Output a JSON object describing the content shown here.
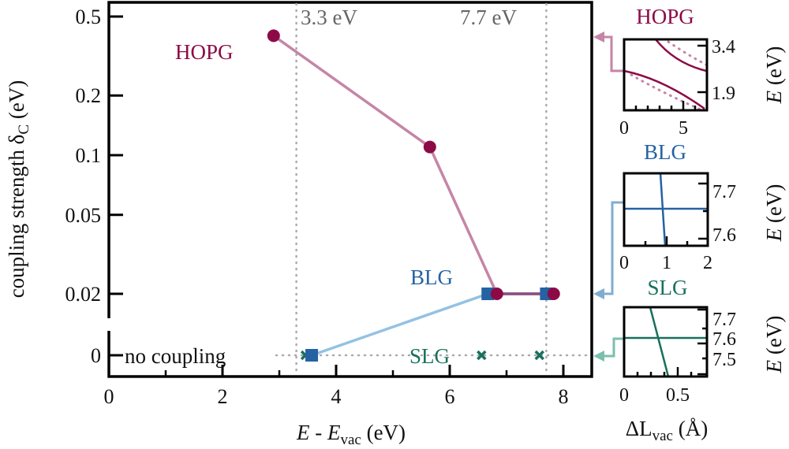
{
  "chart_data": [
    {
      "type": "line",
      "title": "",
      "xlabel": {
        "var": "E",
        "sep": " - ",
        "var2": "E",
        "sub": "vac",
        "unit": " (eV)"
      },
      "ylabel": {
        "text": "coupling strength δ",
        "sub": "C",
        "unit": " (eV)"
      },
      "xlim": [
        0,
        8.5
      ],
      "yscale": "log with axis break to 0",
      "xticks": [
        0,
        2,
        4,
        6,
        8
      ],
      "xtick_labels": [
        "0",
        "2",
        "4",
        "6",
        "8"
      ],
      "yticks": [
        0.5,
        0.2,
        0.1,
        0.05,
        0.02,
        0
      ],
      "ytick_labels": [
        "0.5",
        "0.2",
        "0.1",
        "0.05",
        "0.02",
        "0"
      ],
      "vlines": [
        {
          "x": 3.3,
          "label": "3.3 eV"
        },
        {
          "x": 7.7,
          "label": "7.7 eV"
        }
      ],
      "annotations": {
        "no_coupling": "no coupling"
      },
      "series": [
        {
          "name": "HOPG",
          "marker": "circle",
          "color": "#8c0b47",
          "line_color": "#c585a6",
          "x": [
            2.9,
            5.65,
            6.83,
            7.83
          ],
          "y": [
            0.4,
            0.11,
            0.02,
            0.02
          ]
        },
        {
          "name": "BLG",
          "marker": "square",
          "color": "#2562a3",
          "line_color": "#93c2e3",
          "x": [
            3.57,
            6.67,
            7.7
          ],
          "y": [
            0,
            0.02,
            0.02
          ]
        },
        {
          "name": "SLG",
          "marker": "x",
          "color": "#18705c",
          "line_color": null,
          "x": [
            3.46,
            6.56,
            7.58
          ],
          "y": [
            0,
            0,
            0
          ]
        }
      ]
    },
    {
      "type": "line",
      "title": "HOPG",
      "color": "#8c0b47",
      "xlim": [
        0,
        7
      ],
      "ylim": [
        1.3,
        3.6
      ],
      "xtick_labels": [
        "0",
        "5"
      ],
      "ytick_labels": [
        "3.4",
        "1.9"
      ],
      "ylabel": {
        "var": "E",
        "unit": " (eV)"
      }
    },
    {
      "type": "line",
      "title": "BLG",
      "color": "#2562a3",
      "xlim": [
        0,
        2
      ],
      "ylim": [
        7.55,
        7.73
      ],
      "xtick_labels": [
        "0",
        "1",
        "2"
      ],
      "ytick_labels": [
        "7.7",
        "7.6"
      ],
      "ylabel": {
        "var": "E",
        "unit": " (eV)"
      }
    },
    {
      "type": "line",
      "title": "SLG",
      "color": "#18705c",
      "xlim": [
        0,
        0.8
      ],
      "ylim": [
        7.45,
        7.75
      ],
      "xtick_labels": [
        "0",
        "0.5"
      ],
      "ytick_labels": [
        "7.7",
        "7.6",
        "7.5"
      ],
      "ylabel": {
        "var": "E",
        "unit": " (eV)"
      },
      "xlabel": {
        "text": "ΔL",
        "sub": "vac",
        "unit": " (Å)"
      }
    }
  ]
}
